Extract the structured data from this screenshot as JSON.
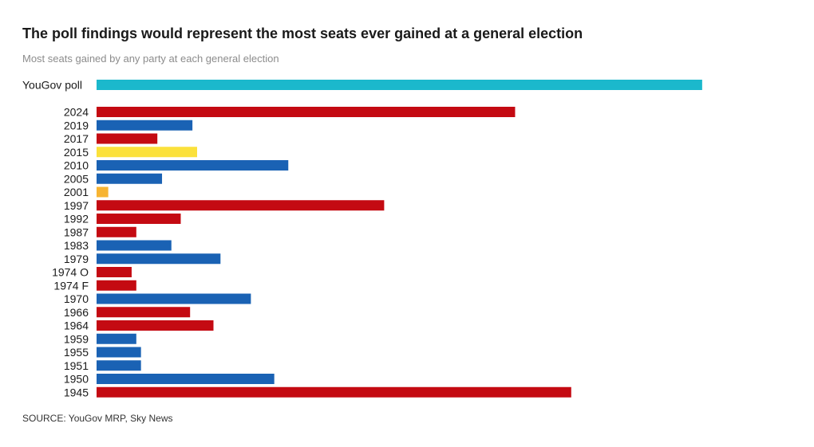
{
  "title": "The poll findings would represent the most seats ever gained at a general election",
  "subtitle": "Most seats gained by any party at each general election",
  "source": "SOURCE: YouGov MRP, Sky News",
  "colors": {
    "poll": "#1bb8cc",
    "labour": "#c40a12",
    "conservative": "#1a62b4",
    "libdem": "#fbe13b",
    "other": "#f7b432"
  },
  "chart_data": {
    "type": "bar",
    "orientation": "horizontal",
    "title": "The poll findings would represent the most seats ever gained at a general election",
    "subtitle": "Most seats gained by any party at each general election",
    "xlabel": "",
    "ylabel": "",
    "xlim": [
      0,
      270
    ],
    "grid": false,
    "legend": "none",
    "categories": [
      "YouGov poll",
      "2024",
      "2019",
      "2017",
      "2015",
      "2010",
      "2005",
      "2001",
      "1997",
      "1992",
      "1987",
      "1983",
      "1979",
      "1974 O",
      "1974 F",
      "1970",
      "1966",
      "1964",
      "1959",
      "1955",
      "1951",
      "1950",
      "1945"
    ],
    "values": [
      259,
      179,
      41,
      26,
      43,
      82,
      28,
      5,
      123,
      36,
      17,
      32,
      53,
      15,
      17,
      66,
      40,
      50,
      17,
      19,
      19,
      76,
      203
    ],
    "party": [
      "poll",
      "labour",
      "conservative",
      "labour",
      "libdem",
      "conservative",
      "conservative",
      "other",
      "labour",
      "labour",
      "labour",
      "conservative",
      "conservative",
      "labour",
      "labour",
      "conservative",
      "labour",
      "labour",
      "conservative",
      "conservative",
      "conservative",
      "conservative",
      "labour"
    ]
  }
}
